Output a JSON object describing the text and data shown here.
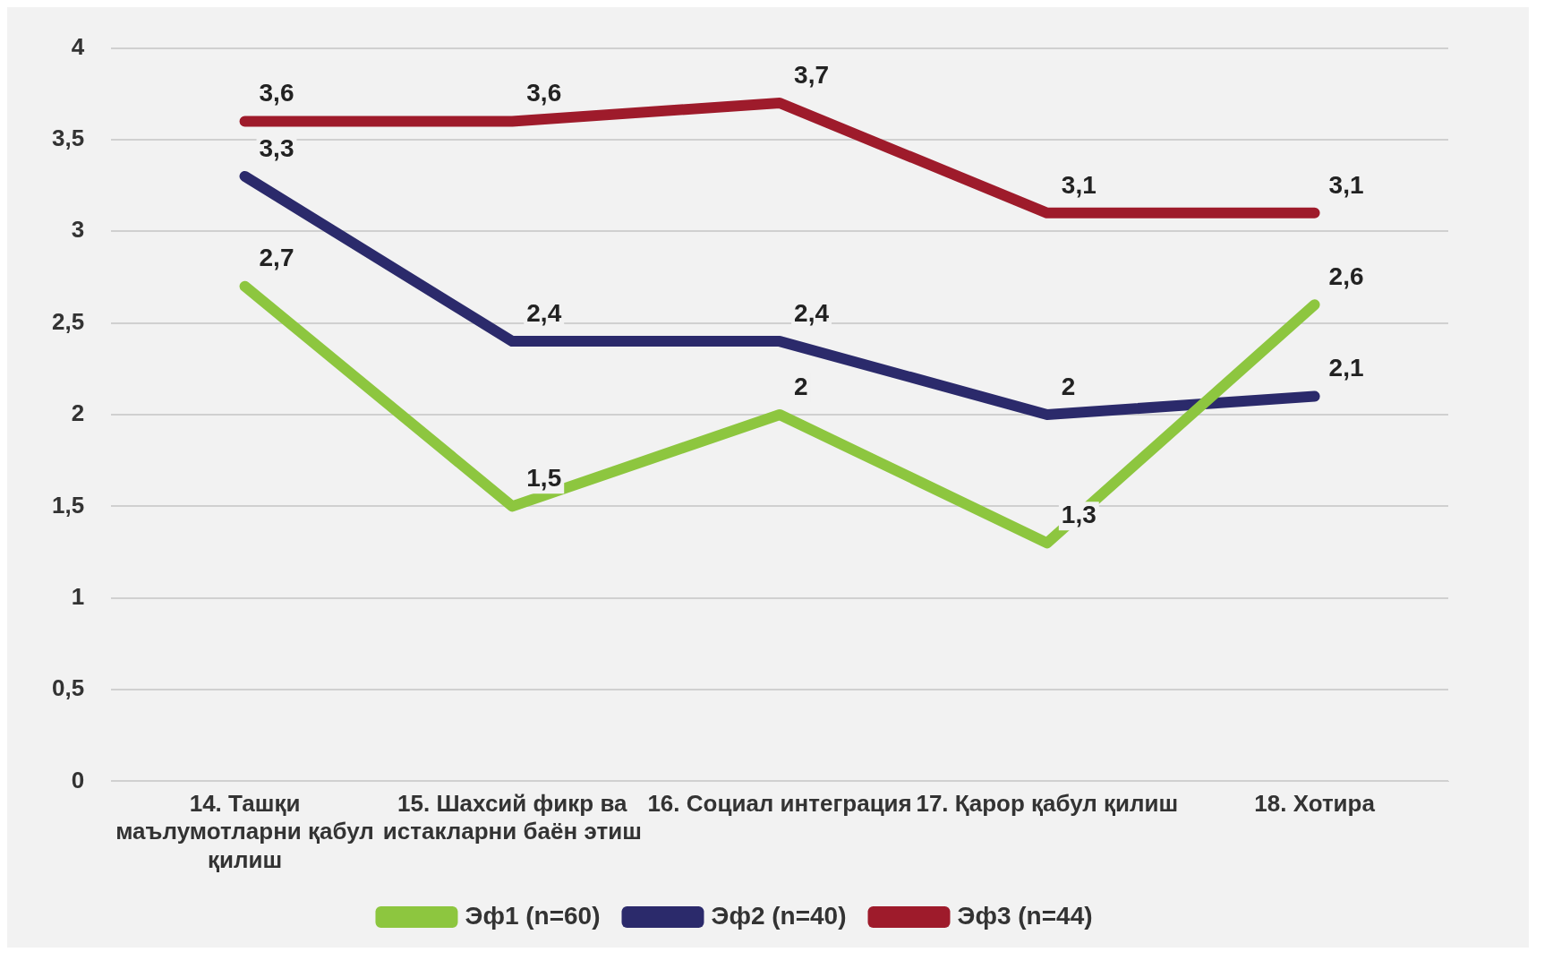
{
  "chart_data": {
    "type": "line",
    "categories": [
      "14. Ташқи маълумотларни қабул қилиш",
      "15. Шахсий фикр ва истакларни баён этиш",
      "16. Социал интеграция",
      "17. Қарор қабул қилиш",
      "18. Хотира"
    ],
    "series": [
      {
        "name": "Эф1 (n=60)",
        "color": "#8dc63f",
        "values": [
          2.7,
          1.5,
          2,
          1.3,
          2.6
        ],
        "value_labels": [
          "2,7",
          "1,5",
          "2",
          "1,3",
          "2,6"
        ]
      },
      {
        "name": "Эф2 (n=40)",
        "color": "#2b2a6b",
        "values": [
          3.3,
          2.4,
          2.4,
          2,
          2.1
        ],
        "value_labels": [
          "3,3",
          "2,4",
          "2,4",
          "2",
          "2,1"
        ]
      },
      {
        "name": "Эф3 (n=44)",
        "color": "#9e1b2b",
        "values": [
          3.6,
          3.6,
          3.7,
          3.1,
          3.1
        ],
        "value_labels": [
          "3,6",
          "3,6",
          "3,7",
          "3,1",
          "3,1"
        ]
      }
    ],
    "ylim": [
      0,
      4
    ],
    "yticks": [
      0,
      {
        "value": 0.5,
        "label": "0,5"
      },
      1,
      {
        "value": 1.5,
        "label": "1,5"
      },
      2,
      {
        "value": 2.5,
        "label": "2,5"
      },
      3,
      {
        "value": 3.5,
        "label": "3,5"
      },
      4
    ],
    "grid": "y",
    "legend": "bottom",
    "marker": "none",
    "line_style": "solid"
  }
}
